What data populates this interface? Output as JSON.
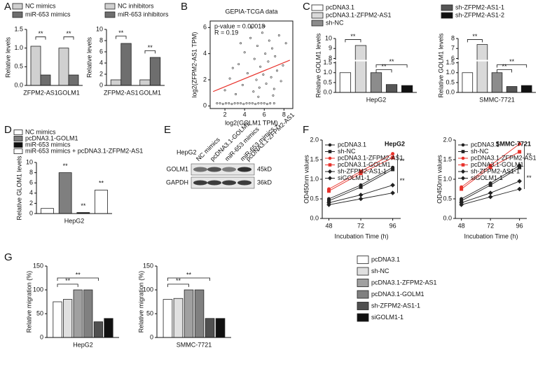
{
  "panel_labels": [
    "A",
    "B",
    "C",
    "D",
    "E",
    "F",
    "G"
  ],
  "blot": {
    "cell_line": "HepG2",
    "lanes": [
      "NC mimics",
      "pcDNA3.1-GOLM1",
      "miR-653 mimics",
      [
        "miR-653 mimics +",
        "pcDNA3.1-ZFPM2-AS1"
      ]
    ],
    "rows": [
      {
        "name": "GOLM1",
        "size": "45kD"
      },
      {
        "name": "GAPDH",
        "size": "36kD"
      }
    ]
  },
  "chart_data": [
    {
      "type": "bar",
      "y_label": "Relative levels",
      "categories": [
        "ZFPM2-AS1",
        "GOLM1"
      ],
      "series": [
        {
          "name": "NC mimics",
          "color": "#d0d0d0",
          "values": [
            1.05,
            1.0
          ]
        },
        {
          "name": "miR-653 mimics",
          "color": "#6e6e6e",
          "values": [
            0.28,
            0.28
          ]
        }
      ],
      "ylim": [
        0,
        1.5
      ],
      "yticks": [
        {
          "value": 0,
          "label": "0.0"
        },
        0.5,
        {
          "value": 1,
          "label": "1.0"
        },
        1.5
      ],
      "annotations": [
        "**",
        "**"
      ]
    },
    {
      "type": "bar",
      "y_label": "Relative levels",
      "categories": [
        "ZFPM2-AS1",
        "GOLM1"
      ],
      "series": [
        {
          "name": "NC inhibitors",
          "color": "#d0d0d0",
          "values": [
            1.0,
            1.0
          ]
        },
        {
          "name": "miR-653 inhibitors",
          "color": "#6e6e6e",
          "values": [
            7.5,
            5.0
          ]
        }
      ],
      "ylim": [
        0,
        10
      ],
      "yticks": [
        0,
        2,
        4,
        6,
        8,
        10
      ],
      "annotations": [
        "**",
        "**"
      ]
    },
    {
      "type": "scatter",
      "title": "GEPIA-TCGA data",
      "x_label": "log2(GOLM1 TPM)",
      "y_label": "log2(ZFPM2-AS1 TPM)",
      "annotations": [
        "p-value = 0.00018",
        "R = 0.19"
      ],
      "x": [
        1.2,
        1.5,
        1.8,
        2.1,
        2.4,
        2.7,
        3.0,
        3.3,
        3.6,
        3.9,
        4.2,
        4.5,
        4.8,
        5.1,
        5.4,
        5.7,
        6.0,
        6.3,
        6.6,
        7.0,
        2.0,
        2.5,
        3.1,
        3.4,
        3.8,
        4.0,
        4.3,
        4.6,
        4.9,
        5.0,
        5.2,
        5.3,
        5.5,
        5.6,
        5.8,
        5.9,
        6.1,
        6.2,
        6.4,
        6.5,
        6.7,
        6.8,
        7.0,
        7.1,
        7.3,
        7.5,
        7.7,
        7.9,
        8.2,
        6.0,
        4.7,
        3.6,
        2.8,
        5.4,
        6.9
      ],
      "values": [
        0.2,
        0.2,
        0.15,
        0.2,
        0.2,
        0.15,
        0.2,
        0.2,
        0.2,
        0.15,
        0.2,
        0.2,
        0.2,
        0.15,
        0.2,
        0.2,
        0.2,
        0.15,
        0.2,
        0.2,
        1.2,
        2.1,
        0.9,
        3.2,
        1.6,
        4.1,
        2.5,
        5.2,
        1.1,
        3.6,
        2.0,
        4.6,
        1.4,
        3.0,
        5.6,
        2.4,
        4.0,
        1.7,
        3.4,
        5.0,
        2.2,
        4.4,
        1.3,
        3.8,
        2.7,
        5.4,
        1.9,
        3.1,
        4.8,
        6.1,
        6.0,
        4.8,
        2.9,
        0.7,
        0.8
      ],
      "color": "#333333",
      "fit": {
        "x": [
          0.8,
          8.6
        ],
        "values": [
          1.1,
          3.5
        ],
        "color": "#e8312a"
      },
      "xlim": [
        0.5,
        8.9
      ],
      "xticks": [
        2,
        4,
        6,
        8
      ],
      "ylim": [
        -0.2,
        6.5
      ],
      "yticks": [
        0,
        2,
        4,
        6
      ]
    },
    {
      "type": "bar",
      "y_label": "Relative GOLM1 levels",
      "categories": [
        "HepG2"
      ],
      "series": [
        {
          "name": "pcDNA3.1",
          "color": "#ffffff",
          "values": [
            1.0
          ]
        },
        {
          "name": "pcDNA3.1-ZFPM2-AS1",
          "color": "#d9d9d9",
          "values": [
            9.3
          ]
        },
        {
          "name": "sh-NC",
          "color": "#8c8c8c",
          "values": [
            1.0
          ]
        },
        {
          "name": "sh-ZFPM2-AS1-1",
          "color": "#555555",
          "values": [
            0.4
          ]
        },
        {
          "name": "sh-ZFPM2-AS1-2",
          "color": "#111111",
          "values": [
            0.35
          ]
        }
      ],
      "ylim": [
        0,
        10
      ],
      "ybreak": [
        1.5,
        8
      ],
      "yticks": [
        {
          "value": 0,
          "label": "0.0"
        },
        0.5,
        {
          "value": 1,
          "label": "1.0"
        },
        1.5,
        8,
        9,
        10
      ],
      "annotations": [
        "**",
        "**",
        "**"
      ]
    },
    {
      "type": "bar",
      "y_label": "Relative GOLM1 levels",
      "categories": [
        "SMMC-7721"
      ],
      "series": [
        {
          "name": "pcDNA3.1",
          "color": "#ffffff",
          "values": [
            1.0
          ]
        },
        {
          "name": "pcDNA3.1-ZFPM2-AS1",
          "color": "#d9d9d9",
          "values": [
            7.4
          ]
        },
        {
          "name": "sh-NC",
          "color": "#8c8c8c",
          "values": [
            1.0
          ]
        },
        {
          "name": "sh-ZFPM2-AS1-1",
          "color": "#555555",
          "values": [
            0.3
          ]
        },
        {
          "name": "sh-ZFPM2-AS1-2",
          "color": "#111111",
          "values": [
            0.35
          ]
        }
      ],
      "ylim": [
        0,
        8
      ],
      "ybreak": [
        1.5,
        6
      ],
      "yticks": [
        {
          "value": 0,
          "label": "0.0"
        },
        0.5,
        {
          "value": 1,
          "label": "1.0"
        },
        1.5,
        6,
        7,
        8
      ],
      "annotations": [
        "**",
        "**",
        "**"
      ]
    },
    {
      "type": "bar",
      "y_label": "Relative GLOM1 levels",
      "categories": [
        "HepG2"
      ],
      "series": [
        {
          "name": "NC mimics",
          "color": "#ffffff",
          "values": [
            1.0
          ]
        },
        {
          "name": "pcDNA3.1-GOLM1",
          "color": "#7f7f7f",
          "values": [
            8.0
          ]
        },
        {
          "name": "miR-653 mimics",
          "color": "#111111",
          "values": [
            0.2
          ]
        },
        {
          "name": "miR-653 mimics + pcDNA3.1-ZFPM2-AS1",
          "color": "#ffffff",
          "values": [
            4.6
          ]
        }
      ],
      "ylim": [
        0,
        10
      ],
      "yticks": [
        0,
        2,
        4,
        6,
        8,
        10
      ],
      "annotations": [
        "**",
        "**",
        "**"
      ]
    },
    {
      "type": "line",
      "title": "HepG2",
      "x_label": "Incubation Time (h)",
      "y_label": "OD450nm values",
      "x": [
        48,
        72,
        96
      ],
      "series": [
        {
          "name": "pcDNA3.1",
          "color": "#222222",
          "marker": "circle",
          "values": [
            0.5,
            0.85,
            1.3
          ]
        },
        {
          "name": "sh-NC",
          "color": "#222222",
          "marker": "square",
          "values": [
            0.45,
            0.8,
            1.25
          ]
        },
        {
          "name": "pcDNA3.1-ZFPM2-AS1",
          "color": "#e8312a",
          "marker": "circle",
          "values": [
            0.75,
            1.2,
            1.65
          ]
        },
        {
          "name": "pcDNA3.1-GOLM1",
          "color": "#e8312a",
          "marker": "square",
          "values": [
            0.7,
            1.15,
            1.55
          ]
        },
        {
          "name": "sh-ZFPM2-AS1-1",
          "color": "#222222",
          "marker": "diamond",
          "values": [
            0.4,
            0.6,
            0.85
          ]
        },
        {
          "name": "siGOLM1-1",
          "color": "#222222",
          "marker": "diamond",
          "values": [
            0.35,
            0.5,
            0.65
          ]
        }
      ],
      "xlim": [
        43,
        102
      ],
      "xticks": [
        48,
        72,
        96
      ],
      "ylim": [
        0,
        2
      ],
      "yticks": [
        {
          "value": 0,
          "label": "0.0"
        },
        0.5,
        {
          "value": 1,
          "label": "1.0"
        },
        1.5,
        {
          "value": 2,
          "label": "2.0"
        }
      ],
      "annotations": [
        "**",
        "**"
      ]
    },
    {
      "type": "line",
      "title": "SMMC-7721",
      "x_label": "Incubation Time (h)",
      "y_label": "OD450nm values",
      "x": [
        48,
        72,
        96
      ],
      "series": [
        {
          "name": "pcDNA3.1",
          "color": "#222222",
          "marker": "circle",
          "values": [
            0.5,
            0.9,
            1.35
          ]
        },
        {
          "name": "sh-NC",
          "color": "#222222",
          "marker": "square",
          "values": [
            0.45,
            0.85,
            1.3
          ]
        },
        {
          "name": "pcDNA3.1-ZFPM2-AS1",
          "color": "#e8312a",
          "marker": "circle",
          "values": [
            0.8,
            1.35,
            1.9
          ]
        },
        {
          "name": "pcDNA3.1-GOLM1",
          "color": "#e8312a",
          "marker": "square",
          "values": [
            0.75,
            1.3,
            1.7
          ]
        },
        {
          "name": "sh-ZFPM2-AS1-1",
          "color": "#222222",
          "marker": "diamond",
          "values": [
            0.4,
            0.65,
            0.95
          ]
        },
        {
          "name": "siGOLM1-1",
          "color": "#222222",
          "marker": "diamond",
          "values": [
            0.35,
            0.55,
            0.75
          ]
        }
      ],
      "xlim": [
        43,
        102
      ],
      "xticks": [
        48,
        72,
        96
      ],
      "ylim": [
        0,
        2
      ],
      "yticks": [
        {
          "value": 0,
          "label": "0.0"
        },
        0.5,
        {
          "value": 1,
          "label": "1.0"
        },
        1.5,
        {
          "value": 2,
          "label": "2.0"
        }
      ],
      "annotations": [
        "**",
        "**"
      ]
    },
    {
      "type": "bar",
      "y_label": "Relative migration (%)",
      "categories": [
        "HepG2"
      ],
      "series": [
        {
          "name": "pcDNA3.1",
          "color": "#ffffff",
          "values": [
            75
          ]
        },
        {
          "name": "sh-NC",
          "color": "#e0e0e0",
          "values": [
            80
          ]
        },
        {
          "name": "pcDNA3.1-ZFPM2-AS1",
          "color": "#a0a0a0",
          "values": [
            100
          ]
        },
        {
          "name": "pcDNA3.1-GOLM1",
          "color": "#808080",
          "values": [
            100
          ]
        },
        {
          "name": "sh-ZFPM2-AS1-1",
          "color": "#505050",
          "values": [
            33
          ]
        },
        {
          "name": "siGOLM1-1",
          "color": "#111111",
          "values": [
            40
          ]
        }
      ],
      "ylim": [
        0,
        150
      ],
      "yticks": [
        0,
        50,
        100,
        150
      ],
      "annotations": [
        "**",
        "**"
      ]
    },
    {
      "type": "bar",
      "y_label": "Relative migration (%)",
      "categories": [
        "SMMC-7721"
      ],
      "series": [
        {
          "name": "pcDNA3.1",
          "color": "#ffffff",
          "values": [
            80
          ]
        },
        {
          "name": "sh-NC",
          "color": "#e0e0e0",
          "values": [
            82
          ]
        },
        {
          "name": "pcDNA3.1-ZFPM2-AS1",
          "color": "#a0a0a0",
          "values": [
            100
          ]
        },
        {
          "name": "pcDNA3.1-GOLM1",
          "color": "#808080",
          "values": [
            100
          ]
        },
        {
          "name": "sh-ZFPM2-AS1-1",
          "color": "#505050",
          "values": [
            40
          ]
        },
        {
          "name": "siGOLM1-1",
          "color": "#111111",
          "values": [
            40
          ]
        }
      ],
      "ylim": [
        0,
        150
      ],
      "yticks": [
        0,
        50,
        100,
        150
      ],
      "annotations": [
        "**",
        "**"
      ]
    }
  ]
}
